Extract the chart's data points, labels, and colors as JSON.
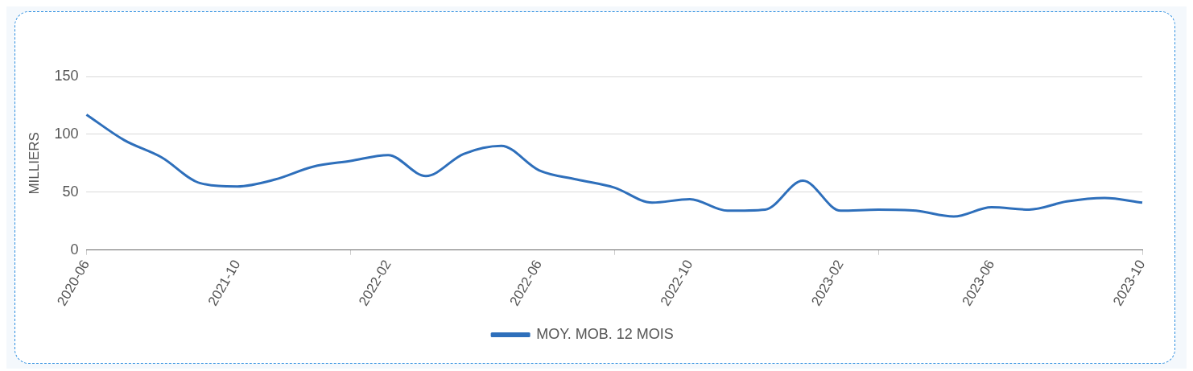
{
  "chart_data": {
    "type": "line",
    "ylabel": "MILLIERS",
    "categories": [
      "2020-06",
      null,
      null,
      null,
      "2021-10",
      null,
      null,
      null,
      "2022-02",
      null,
      null,
      null,
      "2022-06",
      null,
      null,
      null,
      "2022-10",
      null,
      null,
      null,
      "2023-02",
      null,
      null,
      null,
      "2023-06",
      null,
      null,
      null,
      "2023-10"
    ],
    "series": [
      {
        "name": "MOY. MOB. 12 MOIS",
        "color": "#2e6fbb",
        "values": [
          117,
          95,
          80,
          58,
          55,
          61,
          72,
          77,
          82,
          64,
          83,
          90,
          69,
          61,
          54,
          41,
          44,
          34,
          35,
          60,
          34,
          35,
          34,
          29,
          37,
          35,
          42,
          45,
          41
        ]
      }
    ],
    "ylim": [
      0,
      150
    ],
    "yticks": [
      0,
      50,
      100,
      150
    ],
    "grid": "y",
    "legend": "bottom",
    "marker": "none",
    "line_style": "solid"
  }
}
